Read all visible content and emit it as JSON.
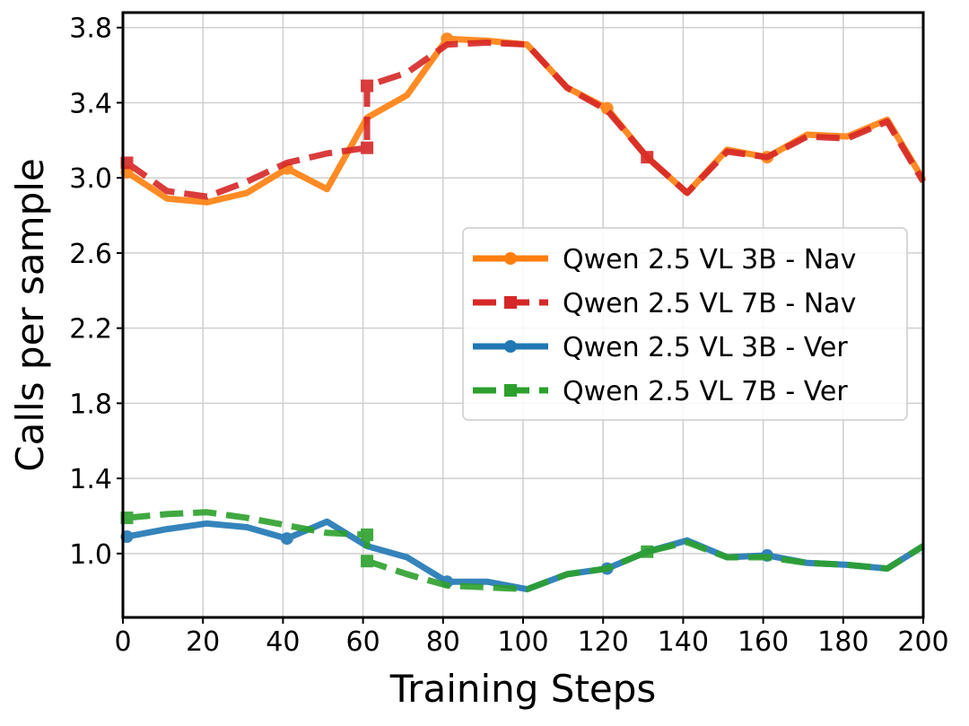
{
  "chart_data": {
    "type": "line",
    "title": "",
    "xlabel": "Training Steps",
    "ylabel": "Calls per sample",
    "xlim": [
      0,
      200
    ],
    "ylim": [
      0.66,
      3.88
    ],
    "xticks": [
      0,
      20,
      40,
      60,
      80,
      100,
      120,
      140,
      160,
      180,
      200
    ],
    "yticks": [
      1.0,
      1.4,
      1.8,
      2.2,
      2.6,
      3.0,
      3.4,
      3.8
    ],
    "grid": true,
    "legend_position": "center-right",
    "series": [
      {
        "name": "Qwen 2.5 VL 3B - Nav",
        "color": "#ff7f0e",
        "dash": false,
        "marker": "circle",
        "x": [
          1,
          11,
          21,
          31,
          41,
          51,
          61,
          71,
          81,
          91,
          101,
          111,
          121,
          131,
          141,
          151,
          161,
          171,
          181,
          191,
          200
        ],
        "y": [
          3.03,
          2.89,
          2.87,
          2.92,
          3.05,
          2.94,
          3.32,
          3.44,
          3.74,
          3.73,
          3.71,
          3.48,
          3.37,
          3.11,
          2.92,
          3.15,
          3.11,
          3.23,
          3.22,
          3.31,
          2.99
        ],
        "markers": [
          1,
          41,
          81,
          121,
          161
        ]
      },
      {
        "name": "Qwen 2.5 VL 7B - Nav",
        "color": "#d62728",
        "dash": true,
        "marker": "square",
        "x": [
          1,
          11,
          21,
          31,
          41,
          51,
          61,
          61,
          71,
          81,
          91,
          101,
          111,
          121,
          131,
          141,
          151,
          161,
          171,
          181,
          191,
          200
        ],
        "y": [
          3.08,
          2.93,
          2.9,
          2.98,
          3.08,
          3.13,
          3.16,
          3.49,
          3.56,
          3.71,
          3.72,
          3.71,
          3.48,
          3.36,
          3.11,
          2.92,
          3.14,
          3.11,
          3.22,
          3.21,
          3.3,
          2.98
        ],
        "markers": [
          1,
          61,
          131
        ]
      },
      {
        "name": "Qwen 2.5 VL 3B - Ver",
        "color": "#1f77b4",
        "dash": false,
        "marker": "circle",
        "x": [
          1,
          11,
          21,
          31,
          41,
          51,
          61,
          71,
          81,
          91,
          101,
          111,
          121,
          131,
          141,
          151,
          161,
          171,
          181,
          191,
          200
        ],
        "y": [
          1.09,
          1.13,
          1.16,
          1.14,
          1.08,
          1.17,
          1.04,
          0.98,
          0.85,
          0.85,
          0.81,
          0.89,
          0.92,
          1.01,
          1.07,
          0.98,
          0.99,
          0.95,
          0.94,
          0.92,
          1.04
        ],
        "markers": [
          1,
          41,
          81,
          121,
          161
        ]
      },
      {
        "name": "Qwen 2.5 VL 7B - Ver",
        "color": "#2ca02c",
        "dash": true,
        "marker": "square",
        "x": [
          1,
          11,
          21,
          31,
          41,
          51,
          61,
          61,
          71,
          81,
          91,
          101,
          111,
          121,
          131,
          141,
          151,
          161,
          171,
          181,
          191,
          200
        ],
        "y": [
          1.19,
          1.21,
          1.22,
          1.19,
          1.15,
          1.11,
          1.1,
          0.96,
          0.89,
          0.83,
          0.82,
          0.81,
          0.89,
          0.92,
          1.01,
          1.06,
          0.98,
          0.98,
          0.95,
          0.94,
          0.92,
          1.04
        ],
        "markers": [
          1,
          61,
          131
        ]
      }
    ]
  }
}
